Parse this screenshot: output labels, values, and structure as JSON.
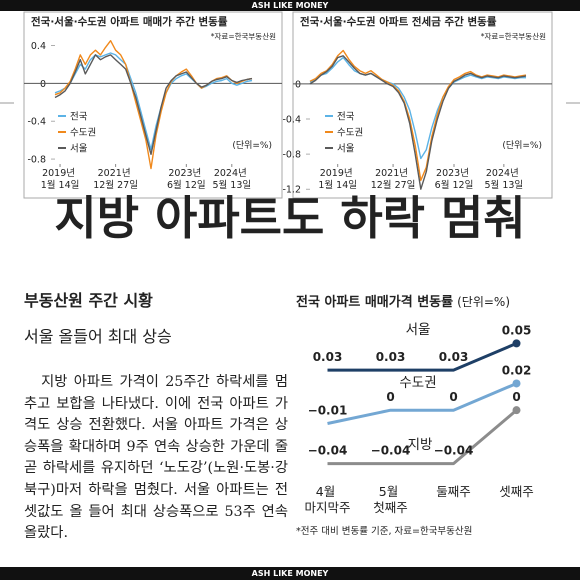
{
  "header": {
    "brand": "ASH LIKE MONEY"
  },
  "headline": "지방 아파트도 하락 멈춰",
  "article": {
    "kicker": "부동산원 주간 시황",
    "subtitle": "서울 올들어 최대 상승",
    "body": "지방 아파트 가격이 25주간 하락세를 멈추고 보합을 나타냈다. 이에 전국 아파트 가격도 상승 전환했다. 서울 아파트 가격은 상승폭을 확대하며 9주 연속 상승한 가운데 줄곧 하락세를 유지하던 ‘노도강’(노원·도봉·강북구)마저 하락을 멈췄다. 서울 아파트는 전셋값도 올 들어 최대 상승폭으로 53주 연속 올랐다."
  },
  "chart_data": [
    {
      "type": "line",
      "title": "전국·서울·수도권 아파트 매매가 주간 변동률",
      "source": "*자료=한국부동산원",
      "unit": "(단위=%)",
      "categories": [
        null,
        "2019년 1월 14일",
        null,
        null,
        null,
        null,
        null,
        null,
        null,
        null,
        null,
        null,
        "2021년 12월 27일",
        null,
        null,
        null,
        null,
        null,
        null,
        null,
        null,
        null,
        null,
        null,
        null,
        null,
        "2023년 6월 12일",
        null,
        null,
        null,
        null,
        null,
        null,
        null,
        null,
        "2024년 5월 13일",
        null,
        null,
        null,
        null
      ],
      "series": [
        {
          "name": "전국",
          "color": "#5cb3e6",
          "values": [
            -0.1,
            -0.08,
            -0.05,
            0.0,
            0.1,
            0.2,
            0.15,
            0.25,
            0.3,
            0.28,
            0.3,
            0.32,
            0.3,
            0.25,
            0.2,
            0.05,
            -0.1,
            -0.3,
            -0.5,
            -0.7,
            -0.45,
            -0.25,
            -0.1,
            0.0,
            0.05,
            0.08,
            0.1,
            0.05,
            0.0,
            -0.05,
            -0.03,
            0.0,
            0.02,
            0.03,
            0.05,
            0.0,
            -0.02,
            0.0,
            0.02,
            0.03
          ]
        },
        {
          "name": "수도권",
          "color": "#f0891c",
          "values": [
            -0.12,
            -0.1,
            -0.05,
            0.02,
            0.15,
            0.3,
            0.2,
            0.3,
            0.35,
            0.3,
            0.38,
            0.45,
            0.35,
            0.3,
            0.2,
            0.0,
            -0.2,
            -0.4,
            -0.6,
            -0.9,
            -0.55,
            -0.3,
            -0.1,
            0.02,
            0.08,
            0.12,
            0.15,
            0.08,
            0.0,
            -0.05,
            -0.02,
            0.02,
            0.05,
            0.06,
            0.08,
            0.03,
            0.0,
            0.02,
            0.04,
            0.05
          ]
        },
        {
          "name": "서울",
          "color": "#5a5a5a",
          "values": [
            -0.15,
            -0.12,
            -0.08,
            0.0,
            0.12,
            0.25,
            0.1,
            0.2,
            0.3,
            0.25,
            0.28,
            0.3,
            0.25,
            0.2,
            0.15,
            0.0,
            -0.15,
            -0.35,
            -0.55,
            -0.75,
            -0.5,
            -0.25,
            -0.05,
            0.03,
            0.08,
            0.1,
            0.12,
            0.06,
            0.0,
            -0.04,
            -0.02,
            0.02,
            0.04,
            0.05,
            0.07,
            0.03,
            0.01,
            0.03,
            0.04,
            0.05
          ]
        }
      ],
      "ylim": [
        -1,
        0.5
      ],
      "yticks": [
        0.4,
        0,
        -0.4,
        -0.8
      ],
      "zero_line": true
    },
    {
      "type": "line",
      "title": "전국·서울·수도권 아파트 전세금 주간 변동률",
      "source": "*자료=한국부동산원",
      "unit": "(단위=%)",
      "categories": [
        null,
        null,
        null,
        null,
        null,
        "2019년 1월 14일",
        null,
        null,
        null,
        null,
        null,
        null,
        null,
        null,
        null,
        "2021년 12월 27일",
        null,
        null,
        null,
        null,
        null,
        null,
        null,
        null,
        null,
        null,
        "2023년 6월 12일",
        null,
        null,
        null,
        null,
        null,
        null,
        null,
        null,
        "2024년 5월 13일",
        null,
        null,
        null,
        null
      ],
      "series": [
        {
          "name": "전국",
          "color": "#5cb3e6",
          "values": [
            0.02,
            0.05,
            0.1,
            0.12,
            0.18,
            0.25,
            0.3,
            0.22,
            0.15,
            0.12,
            0.1,
            0.12,
            0.08,
            0.05,
            0.02,
            0.0,
            -0.05,
            -0.15,
            -0.3,
            -0.55,
            -0.85,
            -0.75,
            -0.5,
            -0.3,
            -0.15,
            -0.05,
            0.02,
            0.05,
            0.08,
            0.1,
            0.08,
            0.06,
            0.08,
            0.07,
            0.06,
            0.08,
            0.07,
            0.06,
            0.07,
            0.07
          ]
        },
        {
          "name": "수도권",
          "color": "#f0891c",
          "values": [
            0.03,
            0.06,
            0.12,
            0.15,
            0.22,
            0.32,
            0.38,
            0.28,
            0.2,
            0.15,
            0.12,
            0.15,
            0.1,
            0.05,
            0.02,
            -0.02,
            -0.08,
            -0.2,
            -0.4,
            -0.7,
            -1.1,
            -0.95,
            -0.6,
            -0.35,
            -0.15,
            -0.03,
            0.05,
            0.08,
            0.12,
            0.14,
            0.1,
            0.08,
            0.1,
            0.09,
            0.08,
            0.1,
            0.09,
            0.08,
            0.09,
            0.1
          ]
        },
        {
          "name": "서울",
          "color": "#5a5a5a",
          "values": [
            0.0,
            0.04,
            0.1,
            0.14,
            0.2,
            0.3,
            0.32,
            0.25,
            0.18,
            0.12,
            0.1,
            0.12,
            0.08,
            0.04,
            0.0,
            -0.03,
            -0.1,
            -0.22,
            -0.45,
            -0.8,
            -1.2,
            -1.0,
            -0.65,
            -0.4,
            -0.2,
            -0.05,
            0.03,
            0.06,
            0.1,
            0.12,
            0.09,
            0.07,
            0.09,
            0.08,
            0.07,
            0.09,
            0.08,
            0.07,
            0.08,
            0.09
          ]
        }
      ],
      "ylim": [
        -1.3,
        0.5
      ],
      "yticks": [
        0,
        -0.4,
        -0.8,
        -1.2
      ],
      "zero_line": true
    },
    {
      "type": "line",
      "title": "전국 아파트 매매가격 변동률",
      "unit": "(단위=%)",
      "note": "*전주 대비 변동률 기준, 자료=한국부동산원",
      "categories": [
        "4월 마지막주",
        "5월 첫째주",
        "둘째주",
        "셋째주"
      ],
      "series": [
        {
          "name": "서울",
          "color": "#1e3f66",
          "values": [
            0.03,
            0.03,
            0.03,
            0.05
          ]
        },
        {
          "name": "수도권",
          "color": "#73a7d3",
          "values": [
            -0.01,
            0,
            0,
            0.02
          ],
          "value_labels": [
            "−0.01",
            "0",
            "0",
            "0.02"
          ]
        },
        {
          "name": "지방",
          "color": "#8c8c8c",
          "values": [
            -0.04,
            -0.04,
            -0.04,
            0
          ],
          "value_labels": [
            "−0.04",
            "−0.04",
            "−0.04",
            "0"
          ]
        }
      ],
      "ylim": [
        -0.05,
        0.06
      ],
      "data_labels": true
    }
  ]
}
